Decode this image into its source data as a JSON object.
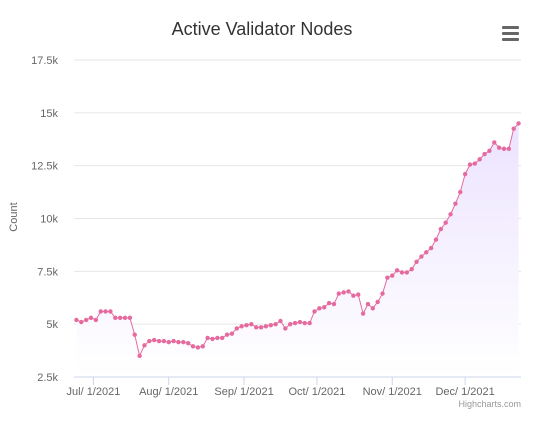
{
  "menu_icon": "hamburger-menu-icon",
  "credits": "Highcharts.com",
  "colors": {
    "line": "#e56b9f",
    "area_top": "#ece3ff",
    "area_bottom": "#ffffff",
    "grid": "#e6e6e6",
    "axis": "#ccd6eb"
  },
  "chart_data": {
    "type": "area",
    "title": "Active Validator Nodes",
    "ylabel": "Count",
    "xlabel": "",
    "ylim": [
      2500,
      17500
    ],
    "yticks": [
      2500,
      5000,
      7500,
      10000,
      12500,
      15000,
      17500
    ],
    "ytick_labels": [
      "2.5k",
      "5k",
      "7.5k",
      "10k",
      "12.5k",
      "15k",
      "17.5k"
    ],
    "xlim": [
      "2021-06-23",
      "2021-12-24"
    ],
    "xticks": [
      "2021-07-01",
      "2021-08-01",
      "2021-09-01",
      "2021-10-01",
      "2021-11-01",
      "2021-12-01"
    ],
    "xtick_labels": [
      "Jul/ 1/2021",
      "Aug/ 1/2021",
      "Sep/ 1/2021",
      "Oct/ 1/2021",
      "Nov/ 1/2021",
      "Dec/ 1/2021"
    ],
    "grid": true,
    "legend": "none",
    "series": [
      {
        "x": [
          "2021-06-24",
          "2021-06-26",
          "2021-06-28",
          "2021-06-30",
          "2021-07-02",
          "2021-07-04",
          "2021-07-06",
          "2021-07-08",
          "2021-07-10",
          "2021-07-12",
          "2021-07-14",
          "2021-07-16",
          "2021-07-18",
          "2021-07-20",
          "2021-07-22",
          "2021-07-24",
          "2021-07-26",
          "2021-07-28",
          "2021-07-30",
          "2021-08-01",
          "2021-08-03",
          "2021-08-05",
          "2021-08-07",
          "2021-08-09",
          "2021-08-11",
          "2021-08-13",
          "2021-08-15",
          "2021-08-17",
          "2021-08-19",
          "2021-08-21",
          "2021-08-23",
          "2021-08-25",
          "2021-08-27",
          "2021-08-29",
          "2021-08-31",
          "2021-09-02",
          "2021-09-04",
          "2021-09-06",
          "2021-09-08",
          "2021-09-10",
          "2021-09-12",
          "2021-09-14",
          "2021-09-16",
          "2021-09-18",
          "2021-09-20",
          "2021-09-22",
          "2021-09-24",
          "2021-09-26",
          "2021-09-28",
          "2021-09-30",
          "2021-10-02",
          "2021-10-04",
          "2021-10-06",
          "2021-10-08",
          "2021-10-10",
          "2021-10-12",
          "2021-10-14",
          "2021-10-16",
          "2021-10-18",
          "2021-10-20",
          "2021-10-22",
          "2021-10-24",
          "2021-10-26",
          "2021-10-28",
          "2021-10-30",
          "2021-11-01",
          "2021-11-03",
          "2021-11-05",
          "2021-11-07",
          "2021-11-09",
          "2021-11-11",
          "2021-11-13",
          "2021-11-15",
          "2021-11-17",
          "2021-11-19",
          "2021-11-21",
          "2021-11-23",
          "2021-11-25",
          "2021-11-27",
          "2021-11-29",
          "2021-12-01",
          "2021-12-03",
          "2021-12-05",
          "2021-12-07",
          "2021-12-09",
          "2021-12-11",
          "2021-12-13",
          "2021-12-15",
          "2021-12-17",
          "2021-12-19",
          "2021-12-21",
          "2021-12-23"
        ],
        "values": [
          5200,
          5100,
          5200,
          5300,
          5200,
          5600,
          5600,
          5600,
          5300,
          5300,
          5300,
          5300,
          4500,
          3500,
          4000,
          4200,
          4250,
          4200,
          4200,
          4150,
          4200,
          4150,
          4150,
          4100,
          3950,
          3900,
          3950,
          4350,
          4300,
          4350,
          4350,
          4500,
          4550,
          4800,
          4900,
          4950,
          5000,
          4850,
          4850,
          4900,
          4950,
          5000,
          5150,
          4800,
          5000,
          5050,
          5100,
          5050,
          5050,
          5600,
          5750,
          5800,
          6000,
          5950,
          6450,
          6500,
          6550,
          6350,
          6400,
          5500,
          5950,
          5750,
          6050,
          6450,
          7200,
          7300,
          7550,
          7450,
          7450,
          7600,
          7950,
          8200,
          8400,
          8600,
          9000,
          9500,
          9800,
          10200,
          10700,
          11250,
          12100,
          12550,
          12600,
          12800,
          13050,
          13200,
          13600,
          13350,
          13300,
          13300,
          14250,
          14500
        ]
      }
    ]
  }
}
